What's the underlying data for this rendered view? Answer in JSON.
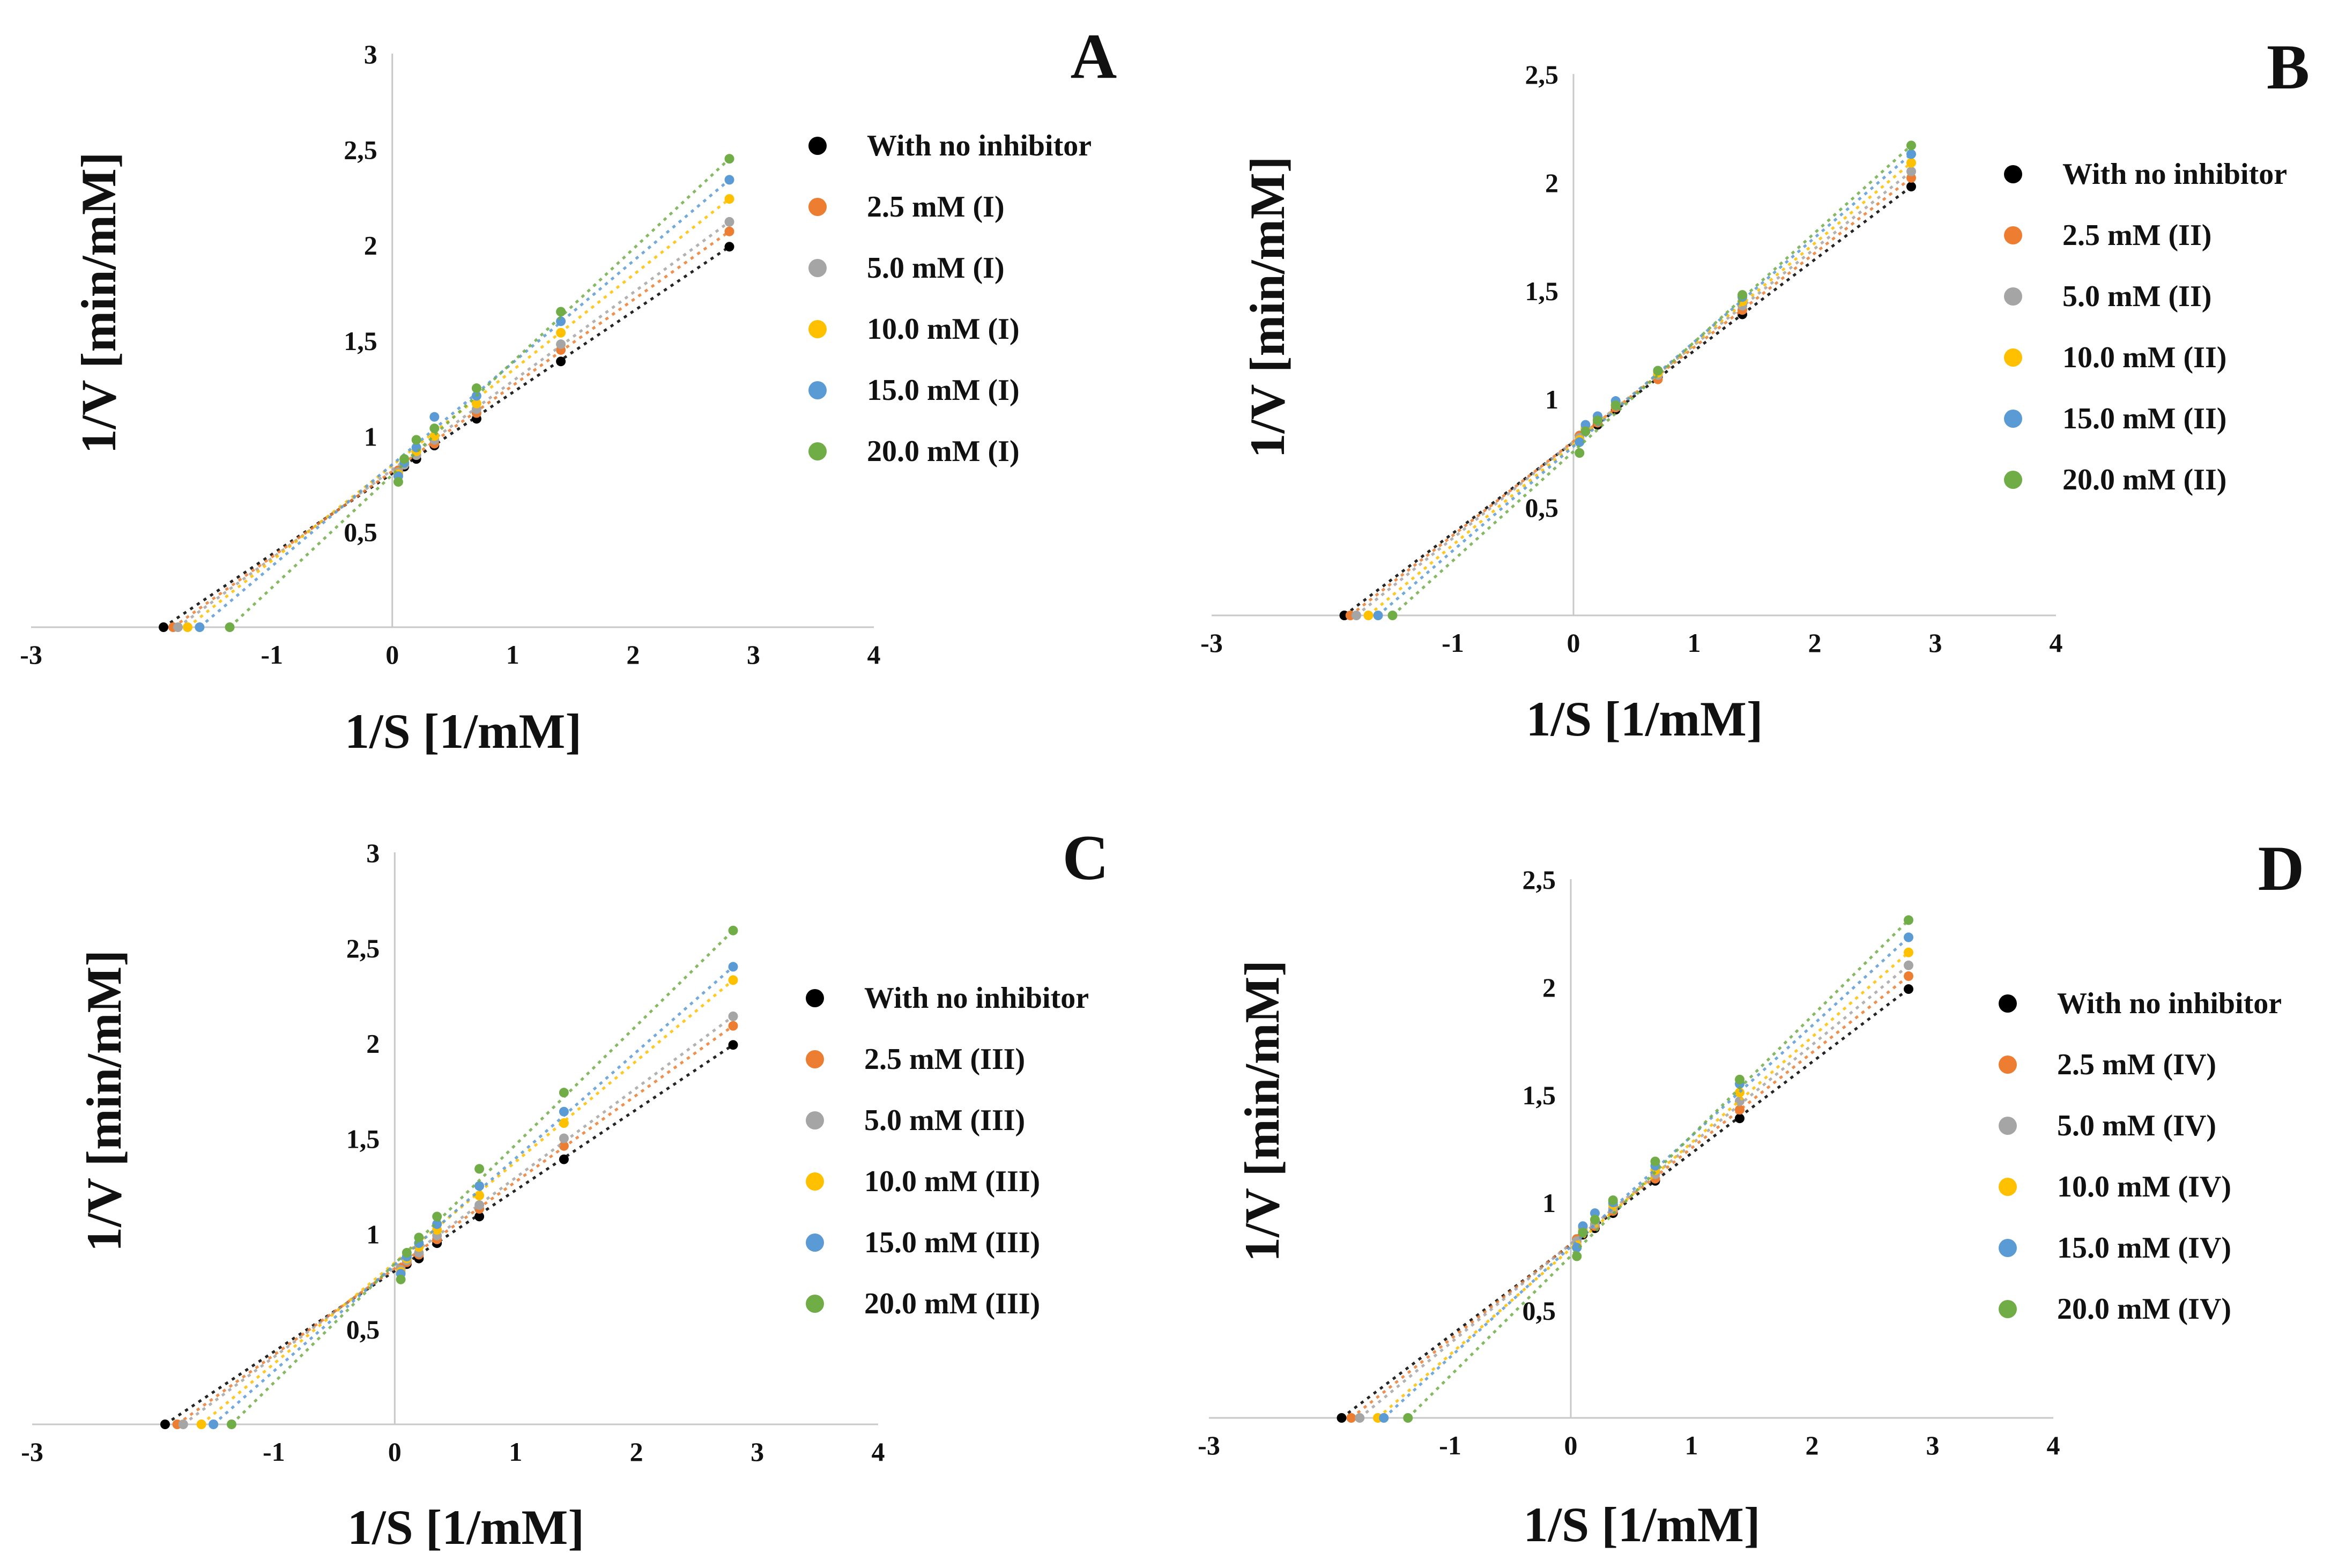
{
  "chart_data": [
    {
      "type": "scatter",
      "panel": "A",
      "xlabel": "1/S [1/mM]",
      "ylabel": "1/V [min/mM]",
      "xlim": [
        -3,
        4
      ],
      "ylim": [
        0,
        3
      ],
      "xticks": [
        "-3",
        "-1",
        "0",
        "1",
        "2",
        "3",
        "4"
      ],
      "yticks": [
        "0,5",
        "1",
        "1,5",
        "2",
        "2,5",
        "3"
      ],
      "trendlines": true,
      "x_points": [
        0.05,
        0.1,
        0.2,
        0.35,
        0.7,
        1.4,
        2.8
      ],
      "series": [
        {
          "name": "With no inhibitor",
          "color": "#000000",
          "x_intercept": -1.9,
          "slope": 0.42,
          "values": [
            0.82,
            0.84,
            0.88,
            0.95,
            1.09,
            1.39,
            1.99
          ]
        },
        {
          "name": "2.5 mM (I)",
          "color": "#ED7D31",
          "x_intercept": -1.82,
          "slope": 0.45,
          "values": [
            0.82,
            0.85,
            0.9,
            0.96,
            1.12,
            1.45,
            2.07
          ]
        },
        {
          "name": "5.0 mM (I)",
          "color": "#A5A5A5",
          "x_intercept": -1.78,
          "slope": 0.47,
          "values": [
            0.81,
            0.85,
            0.9,
            0.98,
            1.14,
            1.48,
            2.12
          ]
        },
        {
          "name": "10.0 mM (I)",
          "color": "#FFC000",
          "x_intercept": -1.7,
          "slope": 0.5,
          "values": [
            0.8,
            0.86,
            0.92,
            1.0,
            1.17,
            1.54,
            2.24
          ]
        },
        {
          "name": "15.0 mM (I)",
          "color": "#5B9BD5",
          "x_intercept": -1.6,
          "slope": 0.54,
          "values": [
            0.79,
            0.86,
            0.94,
            1.1,
            1.21,
            1.6,
            2.34
          ]
        },
        {
          "name": "20.0 mM (I)",
          "color": "#70AD47",
          "x_intercept": -1.35,
          "slope": 0.6,
          "values": [
            0.76,
            0.88,
            0.98,
            1.04,
            1.25,
            1.65,
            2.45
          ]
        }
      ]
    },
    {
      "type": "scatter",
      "panel": "B",
      "xlabel": "1/S [1/mM]",
      "ylabel": "1/V [min/mM]",
      "xlim": [
        -3,
        4
      ],
      "ylim": [
        0,
        2.5
      ],
      "xticks": [
        "-3",
        "-1",
        "0",
        "1",
        "2",
        "3",
        "4"
      ],
      "yticks": [
        "0,5",
        "1",
        "1,5",
        "2",
        "2,5"
      ],
      "trendlines": true,
      "x_points": [
        0.05,
        0.1,
        0.2,
        0.35,
        0.7,
        1.4,
        2.8
      ],
      "series": [
        {
          "name": "With no inhibitor",
          "color": "#000000",
          "x_intercept": -1.9,
          "slope": 0.43,
          "values": [
            0.83,
            0.86,
            0.88,
            0.95,
            1.1,
            1.39,
            1.98
          ]
        },
        {
          "name": "2.5 mM (II)",
          "color": "#ED7D31",
          "x_intercept": -1.85,
          "slope": 0.44,
          "values": [
            0.83,
            0.86,
            0.89,
            0.96,
            1.09,
            1.41,
            2.02
          ]
        },
        {
          "name": "5.0 mM (II)",
          "color": "#A5A5A5",
          "x_intercept": -1.8,
          "slope": 0.45,
          "values": [
            0.82,
            0.86,
            0.9,
            0.97,
            1.11,
            1.43,
            2.05
          ]
        },
        {
          "name": "10.0 mM (II)",
          "color": "#FFC000",
          "x_intercept": -1.7,
          "slope": 0.47,
          "values": [
            0.81,
            0.87,
            0.91,
            0.98,
            1.12,
            1.45,
            2.09
          ]
        },
        {
          "name": "15.0 mM (II)",
          "color": "#5B9BD5",
          "x_intercept": -1.62,
          "slope": 0.48,
          "values": [
            0.8,
            0.88,
            0.92,
            0.99,
            1.13,
            1.47,
            2.13
          ]
        },
        {
          "name": "20.0 mM (II)",
          "color": "#70AD47",
          "x_intercept": -1.5,
          "slope": 0.5,
          "values": [
            0.75,
            0.85,
            0.9,
            0.97,
            1.13,
            1.48,
            2.17
          ]
        }
      ]
    },
    {
      "type": "scatter",
      "panel": "C",
      "xlabel": "1/S [1/mM]",
      "ylabel": "1/V [min/mM]",
      "xlim": [
        -3,
        4
      ],
      "ylim": [
        0,
        3
      ],
      "xticks": [
        "-3",
        "-1",
        "0",
        "1",
        "2",
        "3",
        "4"
      ],
      "yticks": [
        "0,5",
        "1",
        "1,5",
        "2",
        "2,5",
        "3"
      ],
      "trendlines": true,
      "x_points": [
        0.05,
        0.1,
        0.2,
        0.35,
        0.7,
        1.4,
        2.8
      ],
      "series": [
        {
          "name": "With no inhibitor",
          "color": "#000000",
          "x_intercept": -1.9,
          "slope": 0.42,
          "values": [
            0.82,
            0.84,
            0.87,
            0.95,
            1.09,
            1.39,
            1.99
          ]
        },
        {
          "name": "2.5 mM (III)",
          "color": "#ED7D31",
          "x_intercept": -1.8,
          "slope": 0.46,
          "values": [
            0.82,
            0.85,
            0.89,
            0.97,
            1.13,
            1.46,
            2.09
          ]
        },
        {
          "name": "5.0 mM (III)",
          "color": "#A5A5A5",
          "x_intercept": -1.75,
          "slope": 0.47,
          "values": [
            0.81,
            0.86,
            0.9,
            0.99,
            1.15,
            1.5,
            2.14
          ]
        },
        {
          "name": "10.0 mM (III)",
          "color": "#FFC000",
          "x_intercept": -1.6,
          "slope": 0.53,
          "values": [
            0.8,
            0.87,
            0.93,
            1.02,
            1.2,
            1.58,
            2.33
          ]
        },
        {
          "name": "15.0 mM (III)",
          "color": "#5B9BD5",
          "x_intercept": -1.5,
          "slope": 0.55,
          "values": [
            0.79,
            0.88,
            0.95,
            1.05,
            1.25,
            1.64,
            2.4
          ]
        },
        {
          "name": "20.0 mM (III)",
          "color": "#70AD47",
          "x_intercept": -1.35,
          "slope": 0.63,
          "values": [
            0.76,
            0.9,
            0.98,
            1.09,
            1.34,
            1.74,
            2.59
          ]
        }
      ]
    },
    {
      "type": "scatter",
      "panel": "D",
      "xlabel": "1/S [1/mM]",
      "ylabel": "1/V [min/mM]",
      "xlim": [
        -3,
        4
      ],
      "ylim": [
        0,
        2.5
      ],
      "xticks": [
        "-3",
        "-1",
        "0",
        "1",
        "2",
        "3",
        "4"
      ],
      "yticks": [
        "0,5",
        "1",
        "1,5",
        "2",
        "2,5"
      ],
      "trendlines": true,
      "x_points": [
        0.05,
        0.1,
        0.2,
        0.35,
        0.7,
        1.4,
        2.8
      ],
      "series": [
        {
          "name": "With no inhibitor",
          "color": "#000000",
          "x_intercept": -1.9,
          "slope": 0.43,
          "values": [
            0.83,
            0.85,
            0.88,
            0.95,
            1.1,
            1.39,
            1.99
          ]
        },
        {
          "name": "2.5 mM (IV)",
          "color": "#ED7D31",
          "x_intercept": -1.82,
          "slope": 0.45,
          "values": [
            0.83,
            0.86,
            0.89,
            0.96,
            1.11,
            1.43,
            2.05
          ]
        },
        {
          "name": "5.0 mM (IV)",
          "color": "#A5A5A5",
          "x_intercept": -1.75,
          "slope": 0.47,
          "values": [
            0.82,
            0.87,
            0.9,
            0.97,
            1.13,
            1.47,
            2.1
          ]
        },
        {
          "name": "10.0 mM (IV)",
          "color": "#FFC000",
          "x_intercept": -1.6,
          "slope": 0.5,
          "values": [
            0.8,
            0.88,
            0.92,
            0.99,
            1.15,
            1.51,
            2.16
          ]
        },
        {
          "name": "15.0 mM (IV)",
          "color": "#5B9BD5",
          "x_intercept": -1.55,
          "slope": 0.52,
          "values": [
            0.79,
            0.89,
            0.95,
            1.0,
            1.17,
            1.55,
            2.23
          ]
        },
        {
          "name": "20.0 mM (IV)",
          "color": "#70AD47",
          "x_intercept": -1.35,
          "slope": 0.56,
          "values": [
            0.75,
            0.86,
            0.92,
            1.01,
            1.19,
            1.57,
            2.31
          ]
        }
      ]
    }
  ]
}
